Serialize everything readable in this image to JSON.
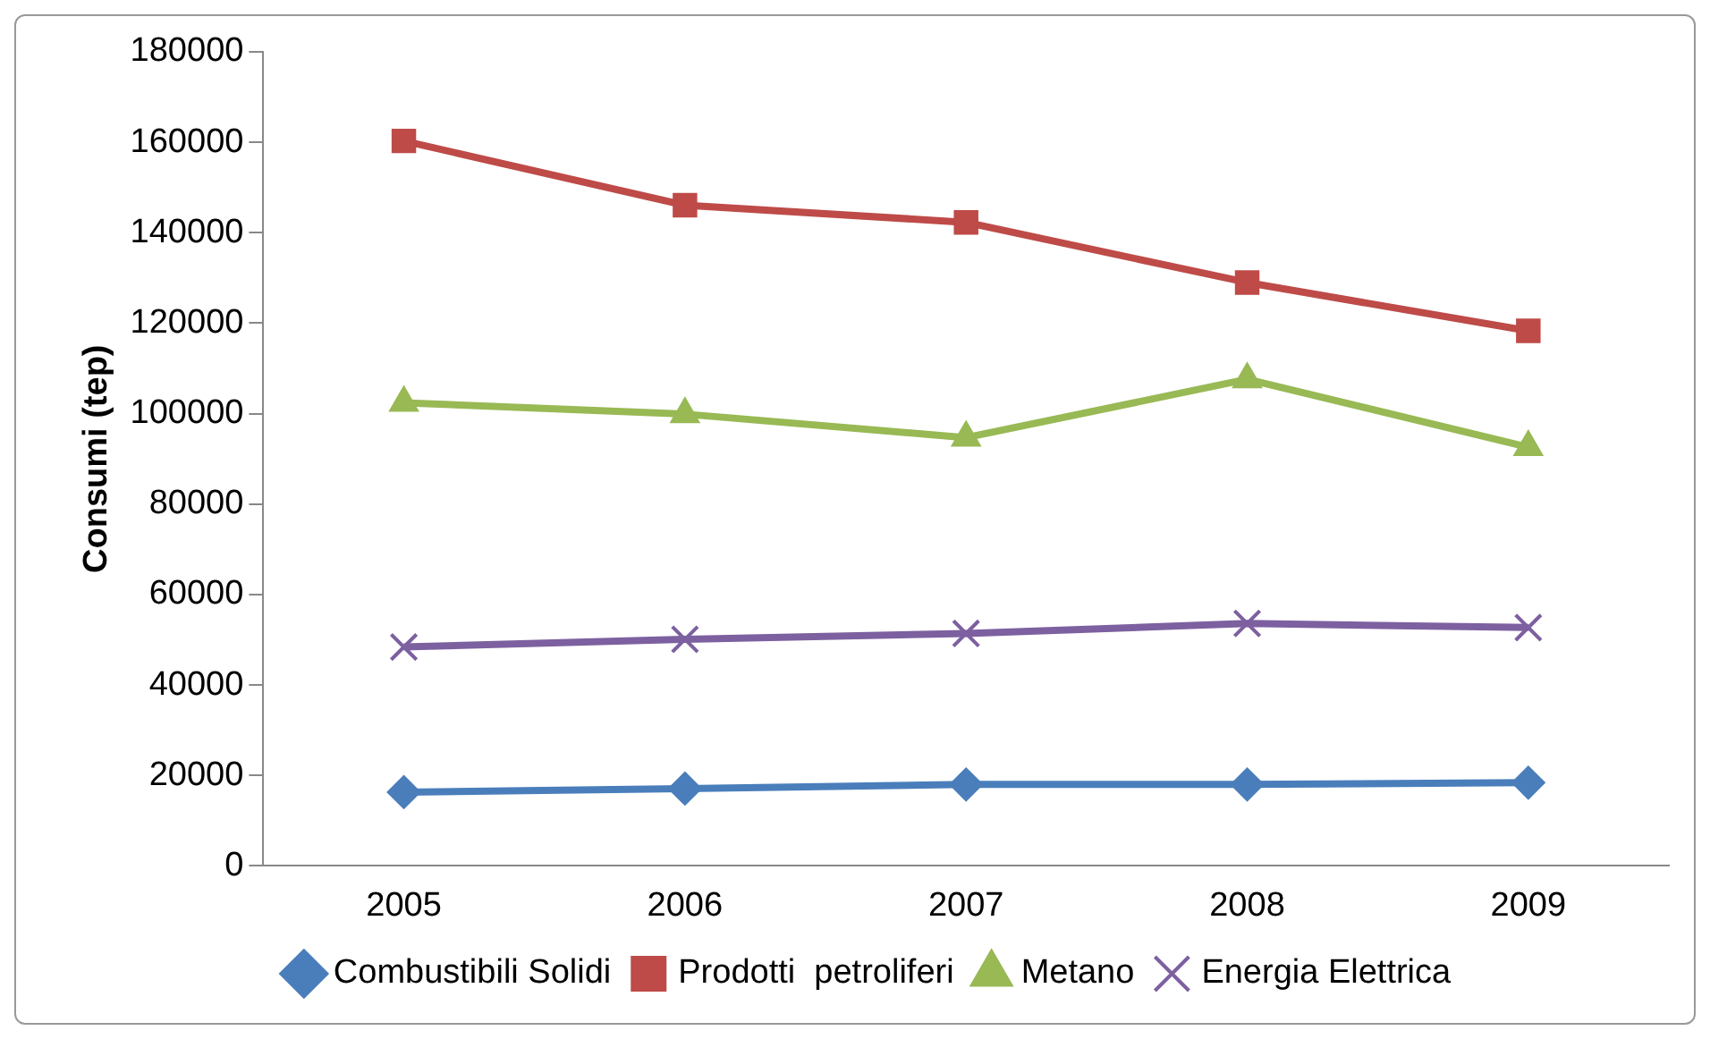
{
  "chart_data": {
    "type": "line",
    "ylabel": "Consumi (tep)",
    "categories": [
      "2005",
      "2006",
      "2007",
      "2008",
      "2009"
    ],
    "series": [
      {
        "name": "Combustibili Solidi",
        "color": "#4a7ebb",
        "marker": "diamond",
        "values": [
          16300,
          17100,
          18000,
          18000,
          18400
        ]
      },
      {
        "name": "Prodotti  petroliferi",
        "color": "#be4b48",
        "marker": "square",
        "values": [
          160300,
          146100,
          142300,
          129000,
          118300
        ]
      },
      {
        "name": "Metano",
        "color": "#98b954",
        "marker": "triangle",
        "values": [
          102400,
          99900,
          94700,
          107600,
          92600
        ]
      },
      {
        "name": "Energia Elettrica",
        "color": "#7d60a0",
        "marker": "cross",
        "values": [
          48400,
          50100,
          51400,
          53600,
          52700
        ]
      }
    ],
    "ylim": [
      0,
      180000
    ],
    "yticks": [
      0,
      20000,
      40000,
      60000,
      80000,
      100000,
      120000,
      140000,
      160000,
      180000
    ],
    "grid": false,
    "legend": "bottom",
    "line_style": "solid"
  }
}
